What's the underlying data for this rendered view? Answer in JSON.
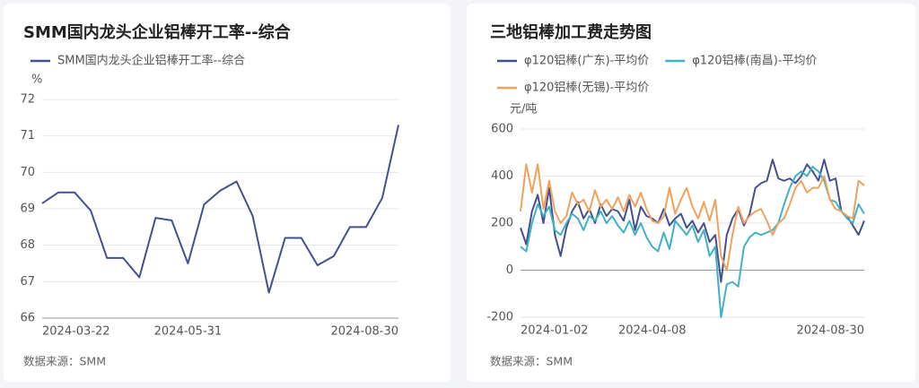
{
  "chart_data": [
    {
      "type": "line",
      "title": "SMM国内龙头企业铝棒开工率--综合",
      "y_unit": "%",
      "source": "数据来源：SMM",
      "grid": true,
      "categories": [
        "2024-03-22",
        null,
        null,
        null,
        null,
        null,
        null,
        null,
        null,
        "2024-05-31",
        null,
        null,
        null,
        null,
        null,
        null,
        null,
        null,
        null,
        null,
        null,
        null,
        "2024-08-30"
      ],
      "series": [
        {
          "name": "SMM国内龙头企业铝棒开工率--综合",
          "color": "#45508f",
          "values": [
            69.15,
            69.45,
            69.45,
            68.95,
            67.65,
            67.65,
            67.12,
            68.75,
            68.68,
            67.5,
            69.12,
            69.5,
            69.75,
            68.8,
            66.7,
            68.2,
            68.2,
            67.45,
            67.7,
            68.5,
            68.5,
            69.3,
            71.3
          ]
        }
      ],
      "ylim": [
        66,
        72
      ],
      "yticks": [
        66,
        67,
        68,
        69,
        70,
        71,
        72
      ]
    },
    {
      "type": "line",
      "title": "三地铝棒加工费走势图",
      "y_unit": "元/吨",
      "source": "数据来源：SMM",
      "grid": true,
      "categories": [
        "2024-01-02",
        null,
        null,
        null,
        null,
        null,
        null,
        null,
        null,
        null,
        null,
        null,
        null,
        null,
        null,
        null,
        null,
        null,
        null,
        null,
        null,
        null,
        null,
        "2024-04-08",
        null,
        null,
        null,
        null,
        null,
        null,
        null,
        null,
        null,
        null,
        null,
        null,
        null,
        null,
        null,
        null,
        null,
        null,
        null,
        null,
        null,
        null,
        null,
        null,
        null,
        null,
        null,
        null,
        null,
        null,
        null,
        null,
        null,
        null,
        null,
        null,
        "2024-08-30"
      ],
      "series": [
        {
          "name": "φ120铝棒(广东)-平均价",
          "color": "#45508f",
          "values": [
            180,
            110,
            250,
            320,
            200,
            350,
            150,
            60,
            180,
            250,
            290,
            220,
            260,
            200,
            280,
            230,
            260,
            250,
            210,
            300,
            170,
            270,
            230,
            220,
            200,
            260,
            190,
            220,
            240,
            180,
            210,
            160,
            200,
            120,
            150,
            -50,
            150,
            220,
            260,
            190,
            240,
            350,
            370,
            380,
            470,
            390,
            380,
            390,
            370,
            400,
            450,
            420,
            380,
            470,
            380,
            390,
            250,
            230,
            190,
            150,
            210
          ]
        },
        {
          "name": "φ120铝棒(南昌)-平均价",
          "color": "#3fb1c6",
          "values": [
            100,
            80,
            200,
            280,
            230,
            270,
            170,
            150,
            200,
            240,
            220,
            170,
            230,
            210,
            250,
            200,
            230,
            190,
            160,
            210,
            150,
            200,
            140,
            100,
            80,
            160,
            90,
            210,
            180,
            150,
            190,
            120,
            170,
            60,
            100,
            -200,
            -60,
            -50,
            -70,
            100,
            140,
            160,
            150,
            160,
            170,
            200,
            280,
            350,
            400,
            420,
            400,
            440,
            420,
            380,
            300,
            290,
            250,
            220,
            200,
            280,
            240
          ]
        },
        {
          "name": "φ120铝棒(无锡)-平均价",
          "color": "#f2a15d",
          "values": [
            250,
            450,
            330,
            450,
            260,
            380,
            250,
            200,
            230,
            330,
            280,
            300,
            250,
            340,
            270,
            300,
            260,
            310,
            250,
            320,
            270,
            330,
            260,
            210,
            200,
            230,
            350,
            240,
            300,
            350,
            270,
            220,
            290,
            210,
            300,
            60,
            0,
            150,
            270,
            200,
            230,
            250,
            260,
            210,
            150,
            200,
            220,
            280,
            350,
            380,
            330,
            350,
            350,
            400,
            300,
            260,
            250,
            230,
            220,
            380,
            360
          ]
        }
      ],
      "ylim": [
        -200,
        600
      ],
      "yticks": [
        -200,
        0,
        200,
        400,
        600
      ]
    }
  ]
}
